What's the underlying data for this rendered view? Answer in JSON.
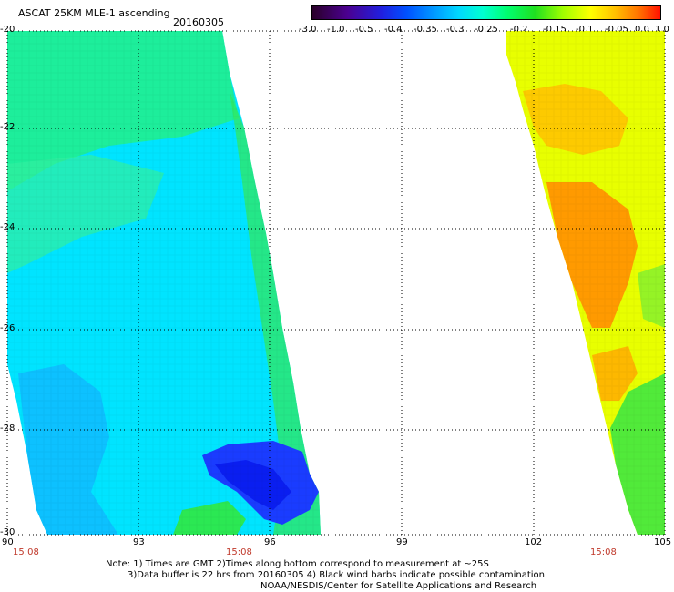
{
  "header": {
    "title": "ASCAT 25KM MLE-1 ascending",
    "date": "20160305"
  },
  "colorbar": {
    "labels": [
      "-3.0",
      "-1.0",
      "-0.5",
      "-0.4",
      "-0.35",
      "-0.3",
      "-0.25",
      "-0.2",
      "-0.15",
      "-0.1",
      "-0.05",
      "0.0",
      "1.0"
    ],
    "colors": [
      "#2a002a",
      "#4b0090",
      "#2020e0",
      "#0050ff",
      "#0090ff",
      "#00d8ff",
      "#00ffd0",
      "#00ff70",
      "#20e020",
      "#a0ff00",
      "#ffff00",
      "#ffc000",
      "#ff7000",
      "#ff1000"
    ]
  },
  "map": {
    "lat_labels": [
      "-20",
      "-22",
      "-24",
      "-26",
      "-28",
      "-30"
    ],
    "lon_labels": [
      "90",
      "93",
      "96",
      "99",
      "102",
      "105"
    ],
    "time_labels": [
      "15:08",
      "15:08",
      "15:08"
    ],
    "colors": {
      "blue": "#1a3cff",
      "light_blue": "#00e4ff",
      "green": "#20f070",
      "orange": "#ff9a00",
      "yellow": "#e8ff00",
      "time_red": "#c0392b"
    }
  },
  "notes": {
    "line1": "Note: 1) Times are GMT 2)Times along bottom correspond to measurement at ~25S",
    "line2": "3)Data buffer is 22 hrs from 20160305 4) Black wind barbs indicate possible contamination",
    "line3": "NOAA/NESDIS/Center for Satellite Applications and Research"
  }
}
